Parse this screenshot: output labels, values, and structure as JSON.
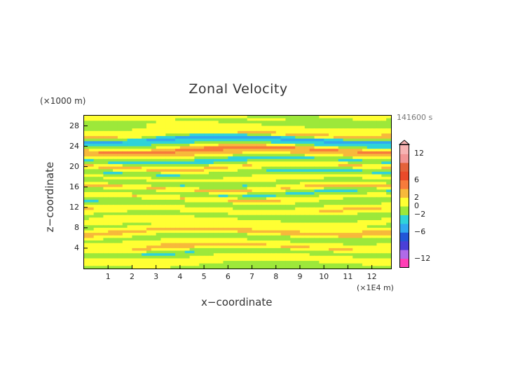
{
  "chart_data": {
    "type": "heatmap",
    "title": "Zonal Velocity",
    "xlabel": "x−coordinate",
    "ylabel": "z−coordinate",
    "x_unit": "(×1E4 m)",
    "y_unit": "(×1000 m)",
    "time_label": "141600 s",
    "xlim": [
      0,
      12.8
    ],
    "ylim": [
      0,
      30
    ],
    "x_ticks": [
      "1",
      "2",
      "3",
      "4",
      "5",
      "6",
      "7",
      "8",
      "9",
      "10",
      "11",
      "12"
    ],
    "y_ticks": [
      "4",
      "8",
      "12",
      "16",
      "20",
      "24",
      "28"
    ],
    "colorbar": {
      "labels": [
        "12",
        "6",
        "2",
        "0",
        "−2",
        "−6",
        "−12"
      ],
      "values": [
        12,
        6,
        2,
        0,
        -2,
        -6,
        -12
      ],
      "range": [
        -14,
        14
      ],
      "top_arrow": true,
      "colors": [
        "#ff3fb6",
        "#b06ae8",
        "#4a3fd8",
        "#2256d8",
        "#30a8f0",
        "#2fd3d9",
        "#9de83a",
        "#ffff33",
        "#f7b93b",
        "#f77b3b",
        "#e94a2a",
        "#e4623b",
        "#f29595",
        "#f7b3b3"
      ]
    },
    "bands": [
      {
        "z": 0.6,
        "v": -1.2
      },
      {
        "z": 1.3,
        "v": 1.5
      },
      {
        "z": 2.2,
        "v": 0.8
      },
      {
        "z": 3.1,
        "v": -2.2
      },
      {
        "z": 4.1,
        "v": 2.5
      },
      {
        "z": 5.2,
        "v": 0.7
      },
      {
        "z": 6.0,
        "v": -1.5
      },
      {
        "z": 7.2,
        "v": 3.2
      },
      {
        "z": 8.3,
        "v": -0.3
      },
      {
        "z": 9.0,
        "v": 1.2
      },
      {
        "z": 10.4,
        "v": -1.0
      },
      {
        "z": 11.5,
        "v": 2.2
      },
      {
        "z": 12.8,
        "v": -1.8
      },
      {
        "z": 13.8,
        "v": 1.8
      },
      {
        "z": 14.8,
        "v": -2.5
      },
      {
        "z": 15.8,
        "v": 2.6
      },
      {
        "z": 16.7,
        "v": -1.6
      },
      {
        "z": 17.8,
        "v": 1.4
      },
      {
        "z": 18.8,
        "v": -2.4
      },
      {
        "z": 20.0,
        "v": 2.7
      },
      {
        "z": 21.2,
        "v": -3.2
      },
      {
        "z": 22.4,
        "v": 2.3
      },
      {
        "z": 23.3,
        "v": 4.8
      },
      {
        "z": 24.3,
        "v": -1.7
      },
      {
        "z": 25.4,
        "v": -4.8
      },
      {
        "z": 26.3,
        "v": 2.4
      },
      {
        "z": 27.3,
        "v": 0.5
      },
      {
        "z": 28.5,
        "v": -0.6
      },
      {
        "z": 29.5,
        "v": 0.4
      }
    ]
  }
}
